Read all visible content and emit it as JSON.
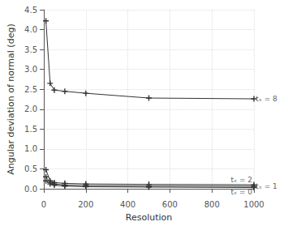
{
  "chart_data": {
    "type": "line",
    "title": "",
    "xlabel": "Resolution",
    "ylabel": "Angular deviation of normal (deg)",
    "xlim": [
      0,
      1000
    ],
    "ylim": [
      0,
      4.5
    ],
    "xticks": [
      0,
      200,
      400,
      600,
      800,
      1000
    ],
    "yticks": [
      {
        "value": 0.0,
        "label": "0.0"
      },
      0.5,
      {
        "value": 1.0,
        "label": "1.0"
      },
      1.5,
      {
        "value": 2.0,
        "label": "2.0"
      },
      2.5,
      {
        "value": 3.0,
        "label": "3.0"
      },
      3.5,
      {
        "value": 4.0,
        "label": "4.0"
      },
      4.5
    ],
    "grid": true,
    "color": "#333333",
    "marker": "plus",
    "series": [
      {
        "x": [
          10,
          30,
          50,
          100,
          200,
          500,
          1000
        ],
        "values": [
          4.22,
          2.65,
          2.48,
          2.45,
          2.4,
          2.28,
          2.26
        ]
      },
      {
        "x": [
          10,
          30,
          50,
          100,
          200,
          500,
          1000
        ],
        "values": [
          0.48,
          0.2,
          0.155,
          0.135,
          0.12,
          0.11,
          0.1
        ]
      },
      {
        "x": [
          10,
          30,
          50,
          100,
          200,
          500,
          1000
        ],
        "values": [
          0.3,
          0.155,
          0.12,
          0.095,
          0.08,
          0.07,
          0.062
        ]
      },
      {
        "x": [
          10,
          30,
          50,
          100,
          200,
          500,
          1000
        ],
        "values": [
          0.2,
          0.12,
          0.09,
          0.065,
          0.05,
          0.04,
          0.03
        ]
      }
    ],
    "annotations": [
      {
        "text": "tₓ = 8",
        "x": 1005,
        "y": 2.26
      },
      {
        "text": "tₓ = 2",
        "x": 890,
        "y": 0.108
      },
      {
        "text": "tₓ = 1",
        "x": 1005,
        "y": 0.062
      },
      {
        "text": "tₓ = 0",
        "x": 890,
        "y": 0.022
      }
    ]
  }
}
